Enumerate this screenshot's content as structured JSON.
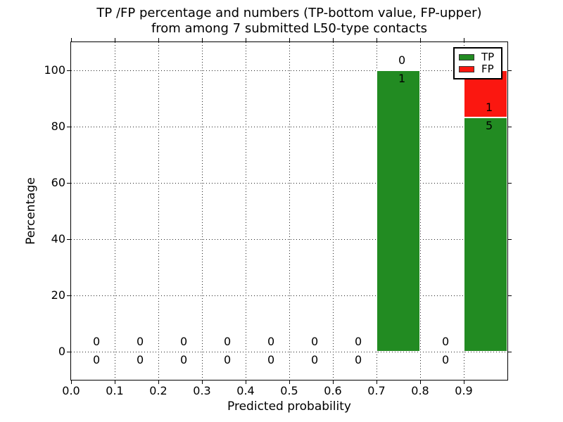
{
  "title": {
    "line1": "TP /FP percentage and numbers (TP-bottom value, FP-upper)",
    "line2": "from among 7 submitted L50-type contacts"
  },
  "axes": {
    "xlabel": "Predicted probability",
    "ylabel": "Percentage",
    "xticks": [
      "0.0",
      "0.1",
      "0.2",
      "0.3",
      "0.4",
      "0.5",
      "0.6",
      "0.7",
      "0.8",
      "0.9"
    ],
    "yticks": [
      "0",
      "20",
      "40",
      "60",
      "80",
      "100"
    ]
  },
  "legend": {
    "items": [
      {
        "label": "TP",
        "color": "#228B22"
      },
      {
        "label": "FP",
        "color": "#FB1710"
      }
    ]
  },
  "chart_data": {
    "type": "bar",
    "stacked": true,
    "title": "TP /FP percentage and numbers (TP-bottom value, FP-upper) from among 7 submitted L50-type contacts",
    "xlabel": "Predicted probability",
    "ylabel": "Percentage",
    "xlim": [
      0.0,
      1.0
    ],
    "ylim": [
      -10,
      110
    ],
    "grid": "dotted",
    "legend_position": "upper right",
    "total_contacts": 7,
    "bin_width": 0.1,
    "annotation_rule": "FP count printed above TP-segment top, TP count printed below TP-segment top",
    "bins": [
      {
        "range": [
          0.0,
          0.1
        ],
        "center": 0.05,
        "tp_count": 0,
        "fp_count": 0,
        "tp_pct": 0,
        "fp_pct": 0
      },
      {
        "range": [
          0.1,
          0.2
        ],
        "center": 0.15,
        "tp_count": 0,
        "fp_count": 0,
        "tp_pct": 0,
        "fp_pct": 0
      },
      {
        "range": [
          0.2,
          0.3
        ],
        "center": 0.25,
        "tp_count": 0,
        "fp_count": 0,
        "tp_pct": 0,
        "fp_pct": 0
      },
      {
        "range": [
          0.3,
          0.4
        ],
        "center": 0.35,
        "tp_count": 0,
        "fp_count": 0,
        "tp_pct": 0,
        "fp_pct": 0
      },
      {
        "range": [
          0.4,
          0.5
        ],
        "center": 0.45,
        "tp_count": 0,
        "fp_count": 0,
        "tp_pct": 0,
        "fp_pct": 0
      },
      {
        "range": [
          0.5,
          0.6
        ],
        "center": 0.55,
        "tp_count": 0,
        "fp_count": 0,
        "tp_pct": 0,
        "fp_pct": 0
      },
      {
        "range": [
          0.6,
          0.7
        ],
        "center": 0.65,
        "tp_count": 0,
        "fp_count": 0,
        "tp_pct": 0,
        "fp_pct": 0
      },
      {
        "range": [
          0.7,
          0.8
        ],
        "center": 0.75,
        "tp_count": 1,
        "fp_count": 0,
        "tp_pct": 100,
        "fp_pct": 0
      },
      {
        "range": [
          0.8,
          0.9
        ],
        "center": 0.85,
        "tp_count": 0,
        "fp_count": 0,
        "tp_pct": 0,
        "fp_pct": 0
      },
      {
        "range": [
          0.9,
          1.0
        ],
        "center": 0.95,
        "tp_count": 5,
        "fp_count": 1,
        "tp_pct": 83.333,
        "fp_pct": 16.667
      }
    ],
    "series": [
      {
        "name": "TP",
        "color": "#228B22",
        "counts": [
          0,
          0,
          0,
          0,
          0,
          0,
          0,
          1,
          0,
          5
        ],
        "percent": [
          0,
          0,
          0,
          0,
          0,
          0,
          0,
          100,
          0,
          83.333
        ]
      },
      {
        "name": "FP",
        "color": "#FB1710",
        "counts": [
          0,
          0,
          0,
          0,
          0,
          0,
          0,
          0,
          0,
          1
        ],
        "percent": [
          0,
          0,
          0,
          0,
          0,
          0,
          0,
          0,
          0,
          16.667
        ]
      }
    ]
  }
}
